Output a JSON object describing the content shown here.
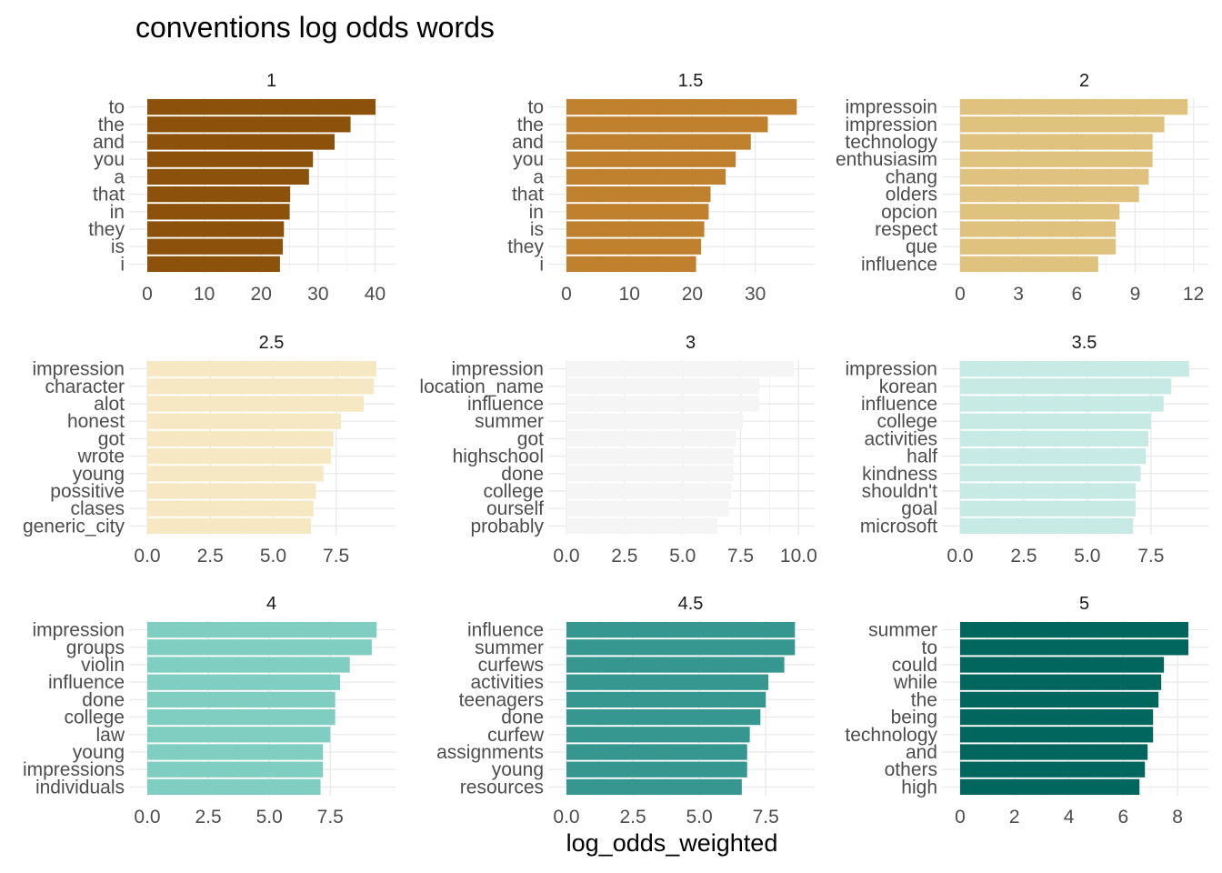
{
  "title": "conventions log odds words",
  "xlabel": "log_odds_weighted",
  "chart_data": {
    "type": "bar",
    "orientation": "horizontal",
    "facets": [
      {
        "label": "1",
        "color": "#8c510a",
        "categories": [
          "to",
          "the",
          "and",
          "you",
          "a",
          "that",
          "in",
          "they",
          "is",
          "i"
        ],
        "values": [
          40.1,
          35.7,
          32.9,
          29.1,
          28.4,
          25.1,
          25.0,
          24.0,
          23.8,
          23.3
        ],
        "xlim": [
          0,
          42
        ],
        "xticks": [
          0,
          10,
          20,
          30,
          40
        ],
        "xtick_labels": [
          "0",
          "10",
          "20",
          "30",
          "40"
        ]
      },
      {
        "label": "1.5",
        "color": "#bf812d",
        "categories": [
          "to",
          "the",
          "and",
          "you",
          "a",
          "that",
          "in",
          "is",
          "they",
          "i"
        ],
        "values": [
          36.6,
          32.0,
          29.3,
          26.9,
          25.3,
          22.9,
          22.6,
          21.9,
          21.4,
          20.6
        ],
        "xlim": [
          0,
          38
        ],
        "xticks": [
          0,
          10,
          20,
          30
        ],
        "xtick_labels": [
          "0",
          "10",
          "20",
          "30"
        ]
      },
      {
        "label": "2",
        "color": "#dfc27d",
        "categories": [
          "impressoin",
          "impression",
          "technology",
          "enthusiasim",
          "chang",
          "olders",
          "opcion",
          "respect",
          "que",
          "influence"
        ],
        "values": [
          11.7,
          10.5,
          9.9,
          9.9,
          9.7,
          9.2,
          8.2,
          8.0,
          8.0,
          7.1
        ],
        "xlim": [
          0,
          12.3
        ],
        "xticks": [
          0,
          3,
          6,
          9,
          12
        ],
        "xtick_labels": [
          "0",
          "3",
          "6",
          "9",
          "12"
        ]
      },
      {
        "label": "2.5",
        "color": "#f6e8c3",
        "categories": [
          "impression",
          "character",
          "alot",
          "honest",
          "got",
          "wrote",
          "young",
          "possitive",
          "clases",
          "generic_city"
        ],
        "values": [
          9.1,
          9.0,
          8.6,
          7.7,
          7.4,
          7.3,
          7.0,
          6.7,
          6.6,
          6.5
        ],
        "xlim": [
          0,
          9.5
        ],
        "xticks": [
          0,
          2.5,
          5.0,
          7.5
        ],
        "xtick_labels": [
          "0.0",
          "2.5",
          "5.0",
          "7.5"
        ]
      },
      {
        "label": "3",
        "color": "#f5f5f5",
        "categories": [
          "impression",
          "location_name",
          "influence",
          "summer",
          "got",
          "highschool",
          "done",
          "college",
          "ourself",
          "probably"
        ],
        "values": [
          9.8,
          8.3,
          8.3,
          7.6,
          7.3,
          7.2,
          7.2,
          7.1,
          7.0,
          6.5
        ],
        "xlim": [
          0,
          10.3
        ],
        "xticks": [
          0,
          2.5,
          5.0,
          7.5,
          10.0
        ],
        "xtick_labels": [
          "0.0",
          "2.5",
          "5.0",
          "7.5",
          "10.0"
        ]
      },
      {
        "label": "3.5",
        "color": "#c7eae5",
        "categories": [
          "impression",
          "korean",
          "influence",
          "college",
          "activities",
          "half",
          "kindness",
          "shouldn't",
          "goal",
          "microsoft"
        ],
        "values": [
          9.0,
          8.3,
          8.0,
          7.5,
          7.4,
          7.3,
          7.1,
          6.9,
          6.9,
          6.8
        ],
        "xlim": [
          0,
          9.4
        ],
        "xticks": [
          0,
          2.5,
          5.0,
          7.5
        ],
        "xtick_labels": [
          "0.0",
          "2.5",
          "5.0",
          "7.5"
        ]
      },
      {
        "label": "4",
        "color": "#80cdc1",
        "categories": [
          "impression",
          "groups",
          "violin",
          "influence",
          "done",
          "college",
          "law",
          "young",
          "impressions",
          "individuals"
        ],
        "values": [
          9.4,
          9.2,
          8.3,
          7.9,
          7.7,
          7.7,
          7.5,
          7.2,
          7.2,
          7.1
        ],
        "xlim": [
          0,
          9.8
        ],
        "xticks": [
          0,
          2.5,
          5.0,
          7.5
        ],
        "xtick_labels": [
          "0.0",
          "2.5",
          "5.0",
          "7.5"
        ]
      },
      {
        "label": "4.5",
        "color": "#35978f",
        "categories": [
          "influence",
          "summer",
          "curfews",
          "activities",
          "teenagers",
          "done",
          "curfew",
          "assignments",
          "young",
          "resources"
        ],
        "values": [
          8.6,
          8.6,
          8.2,
          7.6,
          7.5,
          7.3,
          6.9,
          6.8,
          6.8,
          6.6
        ],
        "xlim": [
          0,
          9.0
        ],
        "xticks": [
          0,
          2.5,
          5.0,
          7.5
        ],
        "xtick_labels": [
          "0.0",
          "2.5",
          "5.0",
          "7.5"
        ]
      },
      {
        "label": "5",
        "color": "#01665e",
        "categories": [
          "summer",
          "to",
          "could",
          "while",
          "the",
          "being",
          "technology",
          "and",
          "others",
          "high"
        ],
        "values": [
          8.4,
          8.4,
          7.5,
          7.4,
          7.3,
          7.1,
          7.1,
          6.9,
          6.8,
          6.6
        ],
        "xlim": [
          0,
          8.8
        ],
        "xticks": [
          0,
          2,
          4,
          6,
          8
        ],
        "xtick_labels": [
          "0",
          "2",
          "4",
          "6",
          "8"
        ]
      }
    ],
    "grid": true,
    "legend": "none"
  }
}
